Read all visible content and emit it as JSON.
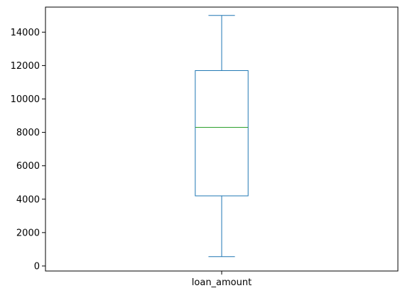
{
  "chart_data": {
    "type": "box",
    "categories": [
      "loan_amount"
    ],
    "series": [
      {
        "whisker_low": 560,
        "q1": 4200,
        "median": 8300,
        "q3": 11700,
        "whisker_high": 15000
      }
    ],
    "ylim": [
      -300,
      15500
    ],
    "yticks": [
      0,
      2000,
      4000,
      6000,
      8000,
      10000,
      12000,
      14000
    ],
    "ytick_labels": [
      "0",
      "2000",
      "4000",
      "6000",
      "8000",
      "10000",
      "12000",
      "14000"
    ],
    "grid": false,
    "colors": {
      "box": "#1f77b4",
      "median": "#2ca02c",
      "axis": "#000000"
    }
  }
}
